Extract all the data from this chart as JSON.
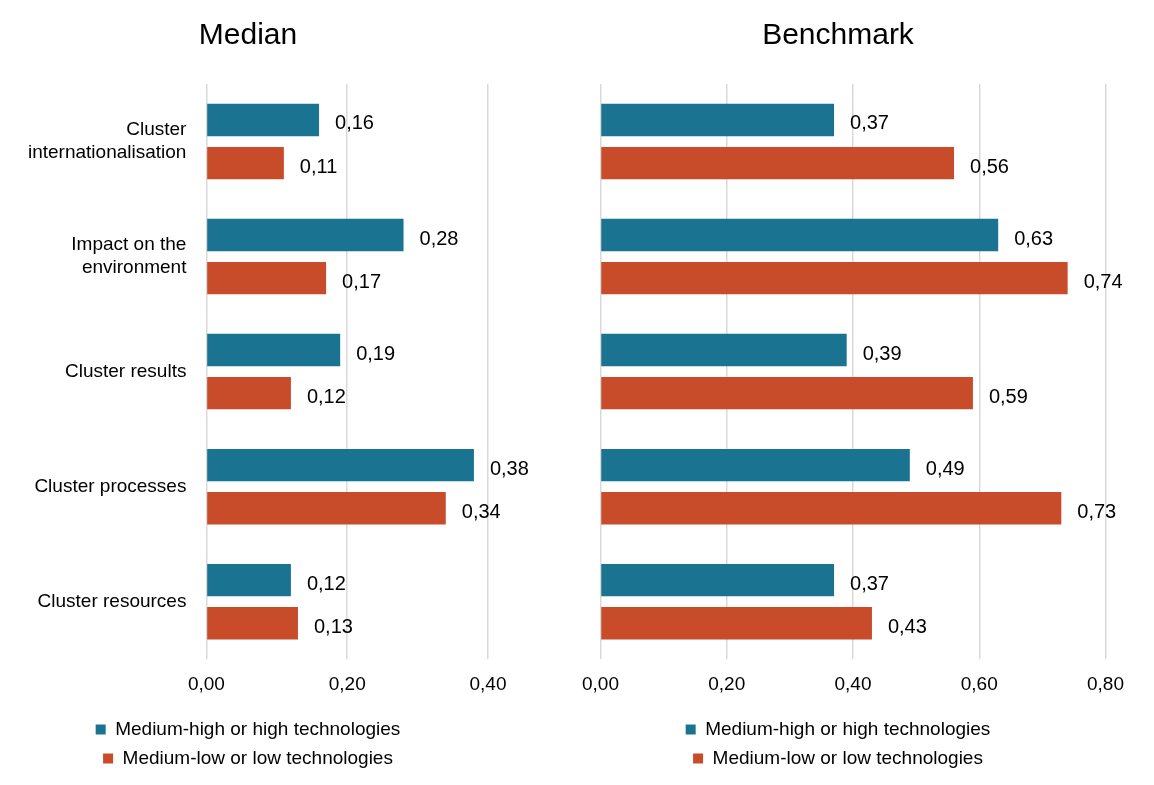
{
  "chart_data": [
    {
      "type": "bar",
      "title": "Median",
      "orientation": "horizontal",
      "categories": [
        "Cluster internationalisation",
        "Impact on the environment",
        "Cluster results",
        "Cluster processes",
        "Cluster resources"
      ],
      "series": [
        {
          "name": "Medium-high or high technologies",
          "color": "#1a7391",
          "values": [
            0.16,
            0.28,
            0.19,
            0.38,
            0.12
          ],
          "value_labels": [
            "0,16",
            "0,28",
            "0,19",
            "0,38",
            "0,12"
          ]
        },
        {
          "name": "Medium-low or low technologies",
          "color": "#c84b2a",
          "values": [
            0.11,
            0.17,
            0.12,
            0.34,
            0.13
          ],
          "value_labels": [
            "0,11",
            "0,17",
            "0,12",
            "0,34",
            "0,13"
          ]
        }
      ],
      "xlim": [
        0,
        0.4
      ],
      "xticks": [
        {
          "value": 0,
          "label": "0,00"
        },
        {
          "value": 0.2,
          "label": "0,20"
        },
        {
          "value": 0.4,
          "label": "0,40"
        }
      ],
      "grid": "x",
      "legend": "bottom"
    },
    {
      "type": "bar",
      "title": "Benchmark",
      "orientation": "horizontal",
      "categories": [
        null,
        null,
        null,
        null,
        null
      ],
      "series": [
        {
          "name": "Medium-high or high technologies",
          "color": "#1a7391",
          "values": [
            0.37,
            0.63,
            0.39,
            0.49,
            0.37
          ],
          "value_labels": [
            "0,37",
            "0,63",
            "0,39",
            "0,49",
            "0,37"
          ]
        },
        {
          "name": "Medium-low or low technologies",
          "color": "#c84b2a",
          "values": [
            0.56,
            0.74,
            0.59,
            0.73,
            0.43
          ],
          "value_labels": [
            "0,56",
            "0,74",
            "0,59",
            "0,73",
            "0,43"
          ]
        }
      ],
      "xlim": [
        0,
        0.8
      ],
      "xticks": [
        {
          "value": 0,
          "label": "0,00"
        },
        {
          "value": 0.2,
          "label": "0,20"
        },
        {
          "value": 0.4,
          "label": "0,40"
        },
        {
          "value": 0.6,
          "label": "0,60"
        },
        {
          "value": 0.8,
          "label": "0,80"
        }
      ],
      "grid": "x",
      "legend": "bottom",
      "tick_labels": "x"
    }
  ]
}
